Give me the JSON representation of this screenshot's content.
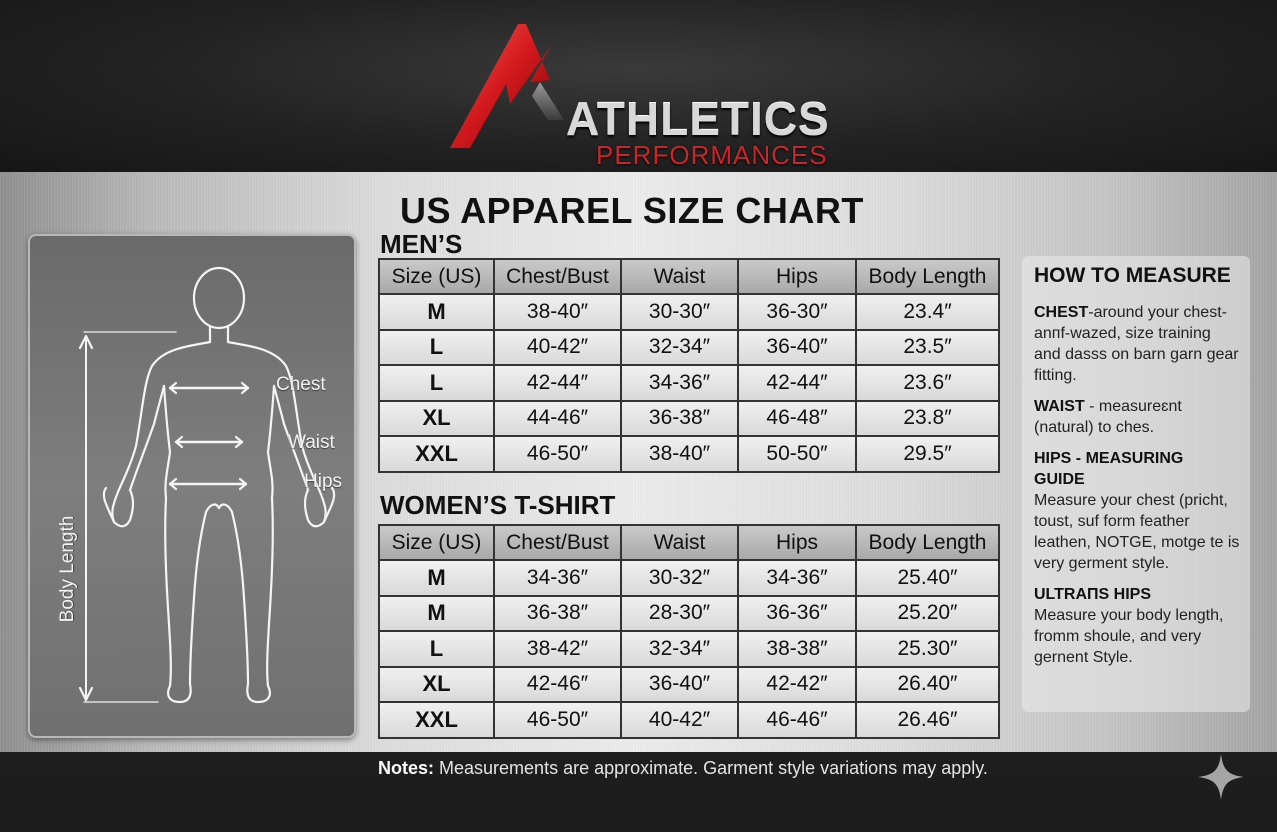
{
  "brand": {
    "name": "ATHLETICS",
    "tagline": "PERFORMANCES"
  },
  "title": "US APPAREL SIZE CHART",
  "body_diagram": {
    "labels": {
      "chest": "Chest",
      "waist": "Waist",
      "hips": "Hips",
      "body_length": "Body Length"
    }
  },
  "mens": {
    "heading": "MEN’S",
    "columns": [
      "Size (US)",
      "Chest/Bust",
      "Waist",
      "Hips",
      "Body Length"
    ],
    "rows": [
      [
        "M",
        "38-40″",
        "30-30″",
        "36-30″",
        "23.4″"
      ],
      [
        "L",
        "40-42″",
        "32-34″",
        "36-40″",
        "23.5″"
      ],
      [
        "L",
        "42-44″",
        "34-36″",
        "42-44″",
        "23.6″"
      ],
      [
        "XL",
        "44-46″",
        "36-38″",
        "46-48″",
        "23.8″"
      ],
      [
        "XXL",
        "46-50″",
        "38-40″",
        "50-50″",
        "29.5″"
      ]
    ]
  },
  "womens": {
    "heading": "WOMEN’S T-SHIRT",
    "columns": [
      "Size (US)",
      "Chest/Bust",
      "Waist",
      "Hips",
      "Body Length"
    ],
    "rows": [
      [
        "M",
        "34-36″",
        "30-32″",
        "34-36″",
        "25.40″"
      ],
      [
        "M",
        "36-38″",
        "28-30″",
        "36-36″",
        "25.20″"
      ],
      [
        "L",
        "38-42″",
        "32-34″",
        "38-38″",
        "25.30″"
      ],
      [
        "XL",
        "42-46″",
        "36-40″",
        "42-42″",
        "26.40″"
      ],
      [
        "XXL",
        "46-50″",
        "40-42″",
        "46-46″",
        "26.46″"
      ]
    ]
  },
  "how_to_measure": {
    "heading": "HOW TO MEASURE",
    "items": [
      {
        "label": "CHEST",
        "text": "-around your chest-anпf-wazed, size training and dasss on barn garn gear fitting."
      },
      {
        "label": "WAIST",
        "text": " - measureɛnt (natural) to ches."
      },
      {
        "label": "HIPS - MEASURING GUIDE",
        "text": "Measure your chest (pricht, toust, suf form feather leathen, NOTGE, motge te is very germent style."
      },
      {
        "label": "ULTRAПS HIPS",
        "text": "Measure your body length, fromm shoule, and very gernent Style."
      }
    ]
  },
  "notes": {
    "label": "Notes:",
    "text": " Measurements are approximate. Garment style variations may apply."
  },
  "colors": {
    "brand_red": "#c8262a",
    "header_dark": "#1c1c1c",
    "panel_silver": "#dcdcdc"
  }
}
